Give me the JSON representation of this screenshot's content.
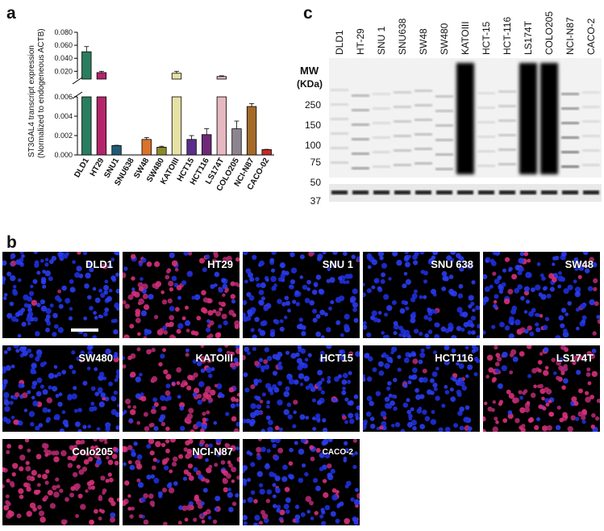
{
  "panels": {
    "a": "a",
    "b": "b",
    "c": "c"
  },
  "chart_data": {
    "type": "bar",
    "ylabel": "ST3GAL4 transcript expression",
    "ylabel2": "(Normalized to endogeneous ACTB)",
    "categories": [
      "DLD1",
      "HT29",
      "SNU1",
      "SNU638",
      "SW48",
      "SW480",
      "KATOIII",
      "HCT15",
      "HCT116",
      "LS174T",
      "COLO205",
      "NCI-N87",
      "CACO-02"
    ],
    "values": [
      0.05,
      0.018,
      0.00097,
      0.0,
      0.0016,
      0.0008,
      0.017,
      0.0016,
      0.0021,
      0.012,
      0.0027,
      0.005,
      0.00055
    ],
    "errors": [
      0.008,
      0.002,
      3e-05,
      0.0,
      0.0002,
      0.0001,
      0.003,
      0.0004,
      0.0006,
      0.001,
      0.0008,
      0.0003,
      3e-05
    ],
    "colors": [
      "#2a7d5f",
      "#b3256b",
      "#1f5c73",
      "#444444",
      "#d9732b",
      "#8a8a2a",
      "#e6e1a5",
      "#5a2f8a",
      "#6e2a78",
      "#e6b8c0",
      "#8e8490",
      "#a36a2a",
      "#c62828"
    ],
    "yticks_lower": [
      "0.000",
      "0.002",
      "0.004",
      "0.006"
    ],
    "yticks_upper": [
      "0.020",
      "0.040",
      "0.060",
      "0.080"
    ],
    "ylim_lower": [
      0,
      0.006
    ],
    "ylim_upper": [
      0.008,
      0.08
    ]
  },
  "blot": {
    "lanes": [
      "DLD1",
      "HT-29",
      "SNU 1",
      "SNU638",
      "SW48",
      "SW480",
      "KATOIII",
      "HCT-15",
      "HCT-116",
      "LS174T",
      "COLO205",
      "NCI-N87",
      "CACO-2"
    ],
    "mw_title": "MW",
    "mw_unit": "(KDa)",
    "markers": [
      "250",
      "150",
      "100",
      "75",
      "50",
      "37"
    ]
  },
  "cell_panels": [
    {
      "label": "DLD1",
      "pink": 0.02
    },
    {
      "label": "HT29",
      "pink": 0.75
    },
    {
      "label": "SNU 1",
      "pink": 0.02
    },
    {
      "label": "SNU 638",
      "pink": 0.03
    },
    {
      "label": "SW48",
      "pink": 0.15
    },
    {
      "label": "SW480",
      "pink": 0.06
    },
    {
      "label": "KATOIII",
      "pink": 0.6
    },
    {
      "label": "HCT15",
      "pink": 0.08
    },
    {
      "label": "HCT116",
      "pink": 0.04
    },
    {
      "label": "LS174T",
      "pink": 0.85
    },
    {
      "label": "Colo205",
      "pink": 0.95
    },
    {
      "label": "NCI-N87",
      "pink": 0.7
    },
    {
      "label": "CACO-2",
      "pink": 0.25
    }
  ]
}
